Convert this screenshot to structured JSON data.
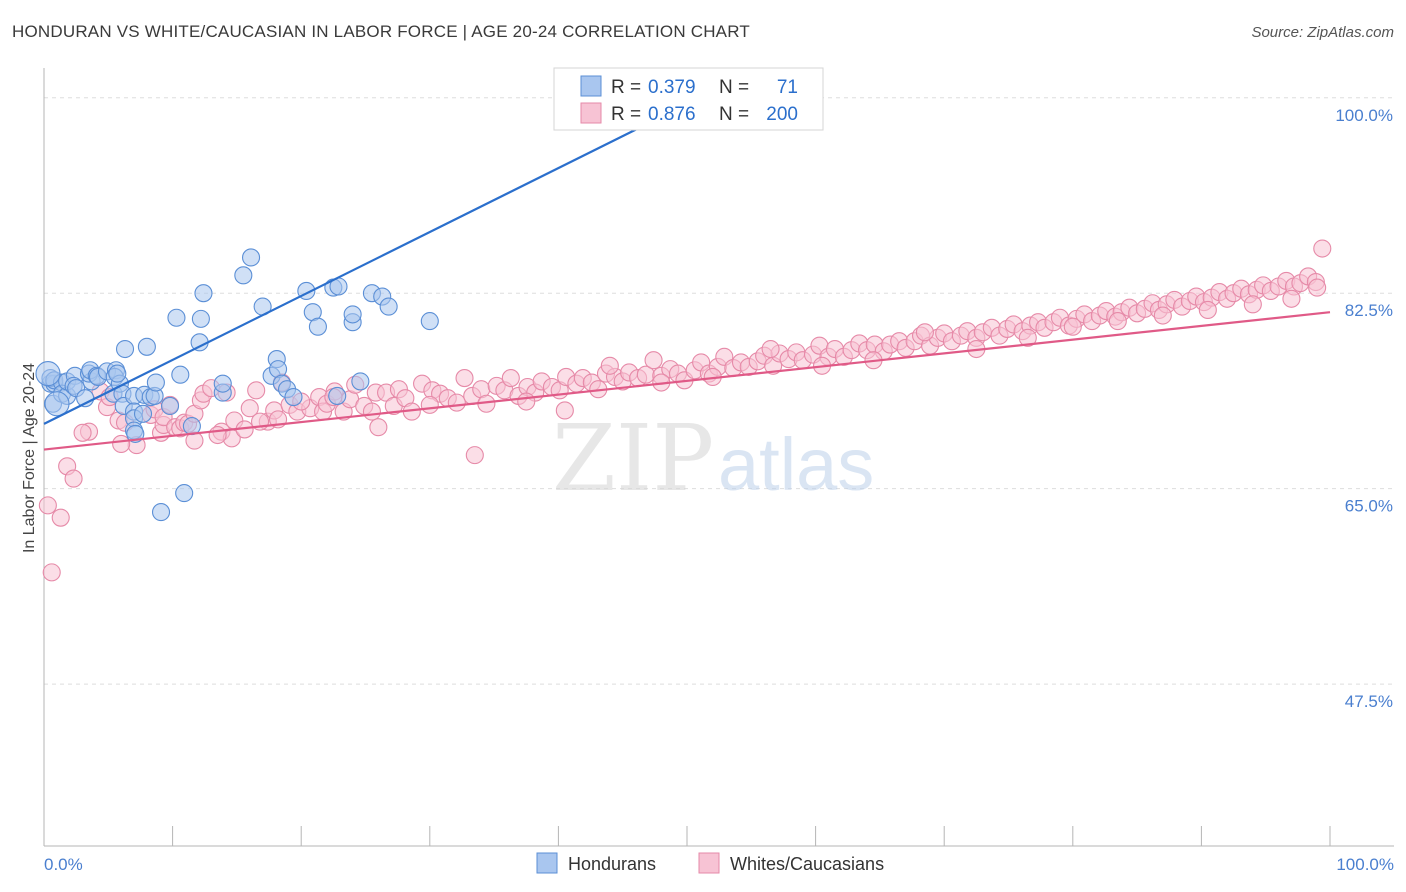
{
  "title": "HONDURAN VS WHITE/CAUCASIAN IN LABOR FORCE | AGE 20-24 CORRELATION CHART",
  "source": "Source: ZipAtlas.com",
  "watermark": {
    "zip": "ZIP",
    "atlas": "atlas"
  },
  "colors": {
    "blue_fill": "#a9c6ef",
    "blue_stroke": "#5b8fd6",
    "blue_line": "#2b6fcc",
    "pink_fill": "#f7c3d4",
    "pink_stroke": "#e68aa8",
    "pink_line": "#e05a87",
    "tick_label": "#4a7fcf",
    "grid": "#dddddd"
  },
  "legend": {
    "rows": [
      {
        "r_label": "R = ",
        "r_value": "0.379",
        "n_label": "N = ",
        "n_value": "71",
        "color": "#a9c6ef"
      },
      {
        "r_label": "R = ",
        "r_value": "0.876",
        "n_label": "N = ",
        "n_value": "200",
        "color": "#f7c3d4"
      }
    ]
  },
  "bottom_legend": [
    {
      "label": "Hondurans",
      "color": "#a9c6ef"
    },
    {
      "label": "Whites/Caucasians",
      "color": "#f7c3d4"
    }
  ],
  "chart_data": {
    "type": "scatter",
    "xlabel": "",
    "ylabel": "In Labor Force | Age 20-24",
    "xlim": [
      0,
      100
    ],
    "ylim": [
      33,
      101.5
    ],
    "x_tick_labels": [
      "0.0%",
      "100.0%"
    ],
    "y_ticks": [
      {
        "value": 100.0,
        "label": "100.0%"
      },
      {
        "value": 82.5,
        "label": "82.5%"
      },
      {
        "value": 65.0,
        "label": "65.0%"
      },
      {
        "value": 47.5,
        "label": "47.5%"
      }
    ],
    "series": [
      {
        "name": "Hondurans",
        "R": 0.379,
        "N": 71,
        "trend": {
          "x": [
            0,
            51
          ],
          "y": [
            70.8,
            100.0
          ]
        },
        "points": [
          [
            0.5,
            74.4
          ],
          [
            0.8,
            74.4
          ],
          [
            0.7,
            72.6
          ],
          [
            0.5,
            74.9
          ],
          [
            0.8,
            74.7
          ],
          [
            1.4,
            74.5
          ],
          [
            1.4,
            73.5
          ],
          [
            1.8,
            73.3
          ],
          [
            1.8,
            74.6
          ],
          [
            2.4,
            75.1
          ],
          [
            2.3,
            74.2
          ],
          [
            2.5,
            74.0
          ],
          [
            3.2,
            73.1
          ],
          [
            3.7,
            74.6
          ],
          [
            3.5,
            75.3
          ],
          [
            3.6,
            75.6
          ],
          [
            4.1,
            75.1
          ],
          [
            4.2,
            75.0
          ],
          [
            4.9,
            75.5
          ],
          [
            5.6,
            75.6
          ],
          [
            5.5,
            75.0
          ],
          [
            5.4,
            73.5
          ],
          [
            5.9,
            74.4
          ],
          [
            5.7,
            75.3
          ],
          [
            6.1,
            73.5
          ],
          [
            6.2,
            72.4
          ],
          [
            6.3,
            77.5
          ],
          [
            7.0,
            73.3
          ],
          [
            7.0,
            71.9
          ],
          [
            7.0,
            71.3
          ],
          [
            7.0,
            70.2
          ],
          [
            7.1,
            69.9
          ],
          [
            7.7,
            71.7
          ],
          [
            7.8,
            73.4
          ],
          [
            8.0,
            77.7
          ],
          [
            8.3,
            73.2
          ],
          [
            8.6,
            73.3
          ],
          [
            8.7,
            74.5
          ],
          [
            9.1,
            62.9
          ],
          [
            9.8,
            72.4
          ],
          [
            10.3,
            80.3
          ],
          [
            10.6,
            75.2
          ],
          [
            10.9,
            64.6
          ],
          [
            11.5,
            70.6
          ],
          [
            12.1,
            78.1
          ],
          [
            12.2,
            80.2
          ],
          [
            12.4,
            82.5
          ],
          [
            13.9,
            73.6
          ],
          [
            13.9,
            74.4
          ],
          [
            15.5,
            84.1
          ],
          [
            16.1,
            85.7
          ],
          [
            17.0,
            81.3
          ],
          [
            17.7,
            75.1
          ],
          [
            18.1,
            76.6
          ],
          [
            18.2,
            75.7
          ],
          [
            18.5,
            74.4
          ],
          [
            18.9,
            73.9
          ],
          [
            19.4,
            73.2
          ],
          [
            20.4,
            82.7
          ],
          [
            20.9,
            80.8
          ],
          [
            21.3,
            79.5
          ],
          [
            22.5,
            83.0
          ],
          [
            22.8,
            73.3
          ],
          [
            22.9,
            83.1
          ],
          [
            24.0,
            79.9
          ],
          [
            24.0,
            80.6
          ],
          [
            24.6,
            74.6
          ],
          [
            25.5,
            82.5
          ],
          [
            26.3,
            82.2
          ],
          [
            26.8,
            81.3
          ],
          [
            30.0,
            80.0
          ]
        ]
      },
      {
        "name": "Whites/Caucasians",
        "R": 0.876,
        "N": 200,
        "trend": {
          "x": [
            0,
            100
          ],
          "y": [
            68.5,
            80.8
          ]
        },
        "points": [
          [
            0.3,
            63.5
          ],
          [
            0.6,
            57.5
          ],
          [
            1.3,
            62.4
          ],
          [
            1.8,
            67.0
          ],
          [
            2.3,
            65.9
          ],
          [
            3.5,
            70.1
          ],
          [
            4.4,
            73.7
          ],
          [
            4.9,
            72.3
          ],
          [
            5.1,
            73.2
          ],
          [
            5.8,
            71.1
          ],
          [
            6.3,
            70.9
          ],
          [
            7.2,
            68.9
          ],
          [
            8.3,
            71.6
          ],
          [
            8.6,
            72.1
          ],
          [
            9.1,
            70.0
          ],
          [
            9.3,
            70.7
          ],
          [
            9.3,
            71.4
          ],
          [
            10.2,
            70.5
          ],
          [
            10.6,
            70.4
          ],
          [
            10.9,
            70.9
          ],
          [
            11.2,
            70.8
          ],
          [
            11.7,
            71.7
          ],
          [
            11.7,
            69.3
          ],
          [
            12.2,
            72.9
          ],
          [
            12.4,
            73.5
          ],
          [
            13.0,
            74.0
          ],
          [
            13.8,
            70.1
          ],
          [
            14.2,
            73.6
          ],
          [
            14.6,
            69.5
          ],
          [
            14.8,
            71.1
          ],
          [
            15.6,
            70.3
          ],
          [
            16.0,
            72.2
          ],
          [
            16.5,
            73.8
          ],
          [
            17.4,
            71.0
          ],
          [
            17.9,
            72.0
          ],
          [
            18.2,
            71.2
          ],
          [
            19.1,
            72.5
          ],
          [
            19.7,
            71.9
          ],
          [
            20.7,
            72.2
          ],
          [
            21.4,
            73.2
          ],
          [
            21.7,
            71.9
          ],
          [
            22.0,
            72.6
          ],
          [
            22.6,
            73.7
          ],
          [
            23.3,
            71.9
          ],
          [
            23.8,
            73.0
          ],
          [
            24.2,
            74.3
          ],
          [
            24.9,
            72.4
          ],
          [
            25.5,
            71.9
          ],
          [
            25.8,
            73.6
          ],
          [
            26.6,
            73.6
          ],
          [
            27.2,
            72.4
          ],
          [
            27.6,
            73.9
          ],
          [
            28.1,
            73.1
          ],
          [
            28.6,
            71.9
          ],
          [
            29.4,
            74.4
          ],
          [
            30.2,
            73.8
          ],
          [
            30.8,
            73.5
          ],
          [
            31.4,
            73.1
          ],
          [
            32.1,
            72.7
          ],
          [
            32.7,
            74.9
          ],
          [
            33.3,
            73.3
          ],
          [
            34.0,
            73.9
          ],
          [
            34.4,
            72.6
          ],
          [
            35.2,
            74.2
          ],
          [
            35.8,
            73.8
          ],
          [
            36.3,
            74.9
          ],
          [
            36.9,
            73.3
          ],
          [
            37.6,
            74.1
          ],
          [
            38.2,
            73.6
          ],
          [
            38.7,
            74.6
          ],
          [
            39.5,
            74.1
          ],
          [
            40.1,
            73.8
          ],
          [
            40.6,
            75.0
          ],
          [
            41.4,
            74.4
          ],
          [
            41.9,
            74.9
          ],
          [
            42.6,
            74.5
          ],
          [
            43.1,
            73.9
          ],
          [
            43.7,
            75.3
          ],
          [
            44.4,
            75.0
          ],
          [
            45.0,
            74.6
          ],
          [
            45.5,
            75.4
          ],
          [
            46.2,
            74.9
          ],
          [
            46.8,
            75.2
          ],
          [
            47.4,
            76.5
          ],
          [
            48.0,
            75.1
          ],
          [
            48.7,
            75.7
          ],
          [
            49.3,
            75.3
          ],
          [
            49.8,
            74.7
          ],
          [
            50.6,
            75.6
          ],
          [
            51.1,
            76.3
          ],
          [
            51.7,
            75.3
          ],
          [
            52.4,
            75.9
          ],
          [
            52.9,
            76.8
          ],
          [
            53.6,
            75.8
          ],
          [
            54.2,
            76.3
          ],
          [
            54.8,
            75.9
          ],
          [
            55.5,
            76.4
          ],
          [
            56.0,
            76.9
          ],
          [
            56.7,
            76.0
          ],
          [
            57.2,
            77.1
          ],
          [
            57.9,
            76.6
          ],
          [
            58.5,
            77.2
          ],
          [
            59.0,
            76.5
          ],
          [
            59.8,
            77.0
          ],
          [
            60.3,
            77.8
          ],
          [
            61.0,
            76.8
          ],
          [
            61.5,
            77.5
          ],
          [
            62.2,
            76.8
          ],
          [
            62.8,
            77.4
          ],
          [
            63.4,
            78.0
          ],
          [
            64.0,
            77.4
          ],
          [
            64.6,
            77.9
          ],
          [
            65.3,
            77.3
          ],
          [
            65.8,
            77.9
          ],
          [
            66.5,
            78.2
          ],
          [
            67.0,
            77.6
          ],
          [
            67.7,
            78.2
          ],
          [
            68.2,
            78.7
          ],
          [
            68.9,
            77.8
          ],
          [
            69.5,
            78.5
          ],
          [
            70.0,
            78.9
          ],
          [
            70.6,
            78.2
          ],
          [
            71.3,
            78.7
          ],
          [
            71.8,
            79.1
          ],
          [
            72.5,
            78.5
          ],
          [
            73.0,
            79.0
          ],
          [
            73.7,
            79.4
          ],
          [
            74.3,
            78.7
          ],
          [
            74.9,
            79.3
          ],
          [
            75.4,
            79.7
          ],
          [
            76.1,
            79.1
          ],
          [
            76.7,
            79.6
          ],
          [
            77.3,
            79.9
          ],
          [
            77.8,
            79.4
          ],
          [
            78.5,
            79.9
          ],
          [
            79.0,
            80.3
          ],
          [
            79.7,
            79.6
          ],
          [
            80.3,
            80.2
          ],
          [
            80.9,
            80.6
          ],
          [
            81.5,
            80.0
          ],
          [
            82.1,
            80.5
          ],
          [
            82.6,
            80.9
          ],
          [
            83.3,
            80.4
          ],
          [
            83.8,
            80.8
          ],
          [
            84.4,
            81.2
          ],
          [
            85.0,
            80.7
          ],
          [
            85.6,
            81.1
          ],
          [
            86.2,
            81.6
          ],
          [
            86.7,
            81.0
          ],
          [
            87.3,
            81.5
          ],
          [
            87.9,
            81.9
          ],
          [
            88.5,
            81.3
          ],
          [
            89.1,
            81.8
          ],
          [
            89.6,
            82.2
          ],
          [
            90.2,
            81.7
          ],
          [
            90.8,
            82.1
          ],
          [
            91.4,
            82.6
          ],
          [
            92.0,
            82.0
          ],
          [
            92.5,
            82.5
          ],
          [
            93.1,
            82.9
          ],
          [
            93.7,
            82.4
          ],
          [
            94.3,
            82.8
          ],
          [
            94.8,
            83.2
          ],
          [
            95.4,
            82.7
          ],
          [
            96.0,
            83.1
          ],
          [
            96.6,
            83.6
          ],
          [
            97.2,
            83.1
          ],
          [
            97.7,
            83.4
          ],
          [
            98.3,
            84.0
          ],
          [
            98.9,
            83.5
          ],
          [
            99.4,
            86.5
          ],
          [
            3.0,
            70.0
          ],
          [
            6.0,
            69.0
          ],
          [
            9.8,
            72.5
          ],
          [
            13.5,
            69.8
          ],
          [
            16.8,
            71.0
          ],
          [
            20.0,
            72.8
          ],
          [
            26.0,
            70.5
          ],
          [
            30.0,
            72.5
          ],
          [
            33.5,
            68.0
          ],
          [
            37.5,
            72.8
          ],
          [
            40.5,
            72.0
          ],
          [
            44.0,
            76.0
          ],
          [
            48.0,
            74.5
          ],
          [
            52.0,
            75.0
          ],
          [
            56.5,
            77.5
          ],
          [
            60.5,
            76.0
          ],
          [
            64.5,
            76.5
          ],
          [
            68.5,
            79.0
          ],
          [
            72.5,
            77.5
          ],
          [
            76.5,
            78.5
          ],
          [
            80.0,
            79.5
          ],
          [
            83.5,
            80.0
          ],
          [
            87.0,
            80.5
          ],
          [
            90.5,
            81.0
          ],
          [
            94.0,
            81.5
          ],
          [
            97.0,
            82.0
          ],
          [
            99.0,
            83.0
          ],
          [
            18.5,
            74.5
          ],
          [
            22.5,
            73.2
          ]
        ]
      }
    ]
  }
}
